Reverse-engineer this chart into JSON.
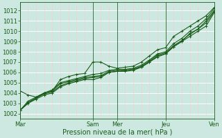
{
  "xlabel": "Pression niveau de la mer( hPa )",
  "background_color": "#cce8e0",
  "grid_color_h": "#ffffff",
  "grid_color_v": "#ffcccc",
  "line_color": "#1a5c1a",
  "ylim": [
    1001.5,
    1012.8
  ],
  "xlim": [
    0,
    24
  ],
  "yticks": [
    1002,
    1003,
    1004,
    1005,
    1006,
    1007,
    1008,
    1009,
    1010,
    1011,
    1012
  ],
  "day_labels": [
    "Mar",
    "Sam",
    "Mer",
    "Jeu",
    "Ven"
  ],
  "day_positions": [
    0,
    9,
    12,
    18,
    24
  ],
  "lines": [
    [
      1002.3,
      1003.0,
      1003.4,
      1003.8,
      1004.0,
      1004.6,
      1004.9,
      1005.1,
      1005.3,
      1005.3,
      1005.5,
      1006.0,
      1006.1,
      1006.2,
      1006.3,
      1006.5,
      1007.0,
      1007.6,
      1007.8,
      1008.5,
      1009.0,
      1009.8,
      1010.2,
      1011.0,
      1012.0
    ],
    [
      1002.3,
      1003.1,
      1003.5,
      1004.0,
      1004.2,
      1004.9,
      1005.1,
      1005.3,
      1005.5,
      1005.6,
      1005.7,
      1006.1,
      1006.2,
      1006.2,
      1006.3,
      1006.6,
      1007.1,
      1007.7,
      1007.9,
      1008.6,
      1009.1,
      1009.7,
      1010.2,
      1010.8,
      1011.9
    ],
    [
      1002.3,
      1003.0,
      1003.5,
      1003.9,
      1004.1,
      1004.7,
      1005.0,
      1005.2,
      1005.4,
      1005.5,
      1005.6,
      1006.0,
      1006.1,
      1006.1,
      1006.2,
      1006.5,
      1007.0,
      1007.5,
      1007.8,
      1008.5,
      1009.0,
      1009.5,
      1010.0,
      1010.5,
      1011.8
    ],
    [
      1002.3,
      1003.2,
      1003.6,
      1004.0,
      1004.3,
      1005.0,
      1005.2,
      1005.4,
      1005.6,
      1005.8,
      1005.9,
      1006.2,
      1006.3,
      1006.3,
      1006.4,
      1006.7,
      1007.2,
      1007.8,
      1008.0,
      1008.8,
      1009.3,
      1010.0,
      1010.5,
      1011.2,
      1012.2
    ],
    [
      1004.2,
      1003.8,
      1003.6,
      1004.0,
      1004.2,
      1005.3,
      1005.6,
      1005.8,
      1005.9,
      1007.0,
      1007.0,
      1006.6,
      1006.4,
      1006.5,
      1006.6,
      1007.0,
      1007.6,
      1008.2,
      1008.4,
      1009.5,
      1010.0,
      1010.5,
      1011.0,
      1011.5,
      1012.3
    ]
  ],
  "xlabel_fontsize": 7,
  "tick_fontsize": 6,
  "linewidth": 0.8,
  "markersize": 2.5
}
